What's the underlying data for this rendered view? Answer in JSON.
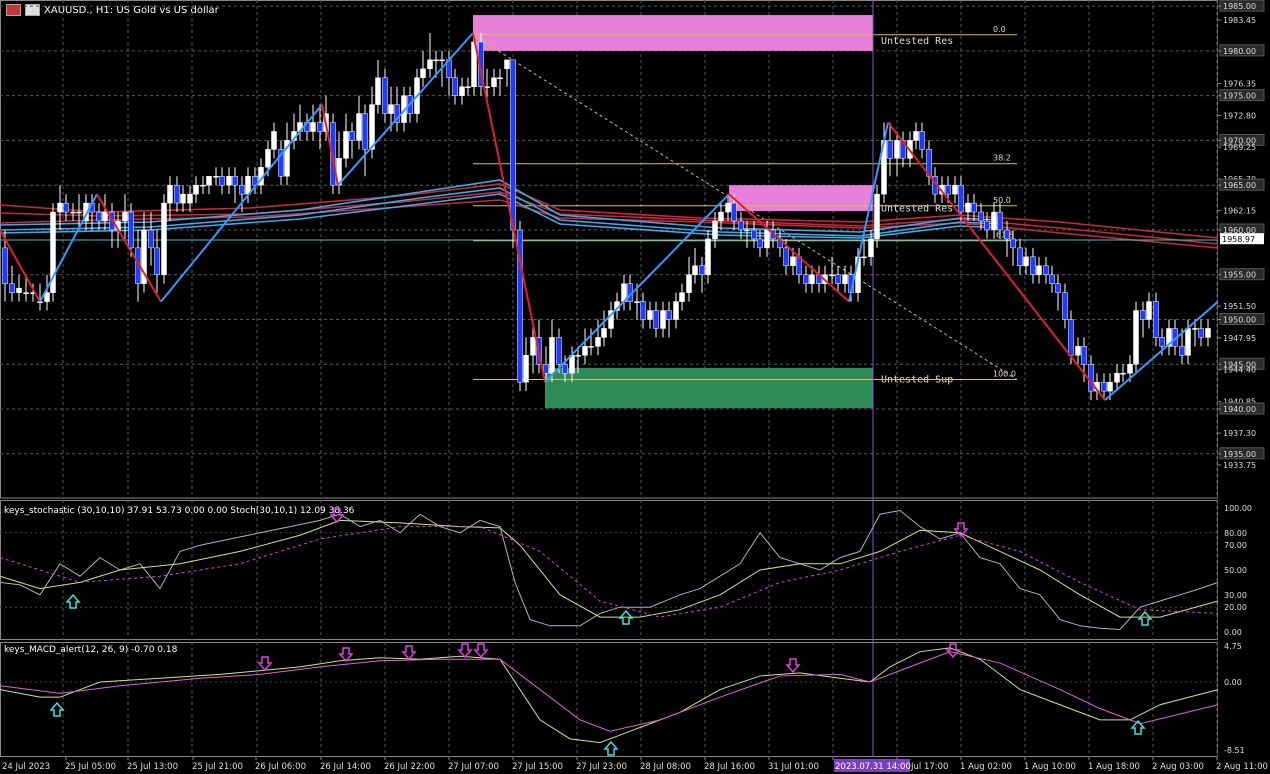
{
  "window": {
    "title": "XAUUSD., H1: US Gold vs US dollar"
  },
  "colors": {
    "background": "#000000",
    "bull_candle": "#ffffff",
    "bear_candle": "#1e3cff",
    "zigzag_up": "#3399ff",
    "zigzag_down": "#e0202e",
    "resistance_zone": "#e87fd8",
    "support_zone": "#2e8b57",
    "fib_line": "#d4c24a",
    "ma_cyan": "#3fa9e8",
    "ma_red": "#c8283c",
    "stoch_main": "#b0b0c0",
    "stoch_signal": "#c8e87a",
    "macd_line": "#c8e87a",
    "macd_signal": "#e060e0",
    "arrow_up": "#40e0e0",
    "arrow_down": "#e040e0",
    "current_price_bg": "#2a2a2a"
  },
  "price_axis": {
    "labels": [
      "1985.00",
      "1983.45",
      "1980.00",
      "1976.35",
      "1975.00",
      "1972.80",
      "1970.00",
      "1969.25",
      "1965.70",
      "1965.00",
      "1962.15",
      "1960.00",
      "1958.97",
      "1955.00",
      "1951.50",
      "1950.00",
      "1947.95",
      "1945.00",
      "1944.40",
      "1940.85",
      "1940.00",
      "1937.30",
      "1935.00",
      "1933.75"
    ],
    "highlighted": [
      "1985.00",
      "1980.00",
      "1975.00",
      "1970.00",
      "1965.00",
      "1960.00",
      "1958.97",
      "1955.00",
      "1950.00",
      "1945.00",
      "1940.00",
      "1935.00"
    ]
  },
  "zones": {
    "resistance_top": {
      "label": "Untested Res",
      "price_from": 1980.0,
      "price_to": 1984.0
    },
    "resistance_mid": {
      "label": "Untested Res",
      "price_from": 1962.1,
      "price_to": 1965.0
    },
    "support": {
      "label": "Untested Sup",
      "price_from": 1940.1,
      "price_to": 1944.6
    }
  },
  "fib_levels": [
    {
      "label": "0.0",
      "price": 1981.8
    },
    {
      "label": "38.2",
      "price": 1967.4
    },
    {
      "label": "50.0",
      "price": 1962.7
    },
    {
      "label": "61.8",
      "price": 1958.8
    },
    {
      "label": "100.0",
      "price": 1943.3
    }
  ],
  "stochastic": {
    "label": "keys_stochastic (30,10,10) 37.91 53.73 0.00 0.00 Stoch(30,10,1) 12.09 38.36",
    "axis": [
      "100.00",
      "80.00",
      "70.00",
      "50.00",
      "30.00",
      "20.00",
      "0.00"
    ]
  },
  "macd": {
    "label": "keys_MACD_alert(12, 26, 9) -0.70 0.18",
    "axis": [
      "4.75",
      "0.00",
      "-8.51"
    ]
  },
  "time_axis": {
    "labels": [
      "24 Jul 2023",
      "25 Jul 05:00",
      "25 Jul 13:00",
      "25 Jul 21:00",
      "26 Jul 06:00",
      "26 Jul 14:00",
      "26 Jul 22:00",
      "27 Jul 07:00",
      "27 Jul 15:00",
      "27 Jul 23:00",
      "28 Jul 08:00",
      "28 Jul 16:00",
      "31 Jul 01:00",
      "2023.07.31 14:00",
      "Jul 17:00",
      "1 Aug 02:00",
      "1 Aug 10:00",
      "1 Aug 18:00",
      "2 Aug 03:00",
      "2 Aug 11:00"
    ],
    "highlighted": "2023.07.31 14:00"
  }
}
